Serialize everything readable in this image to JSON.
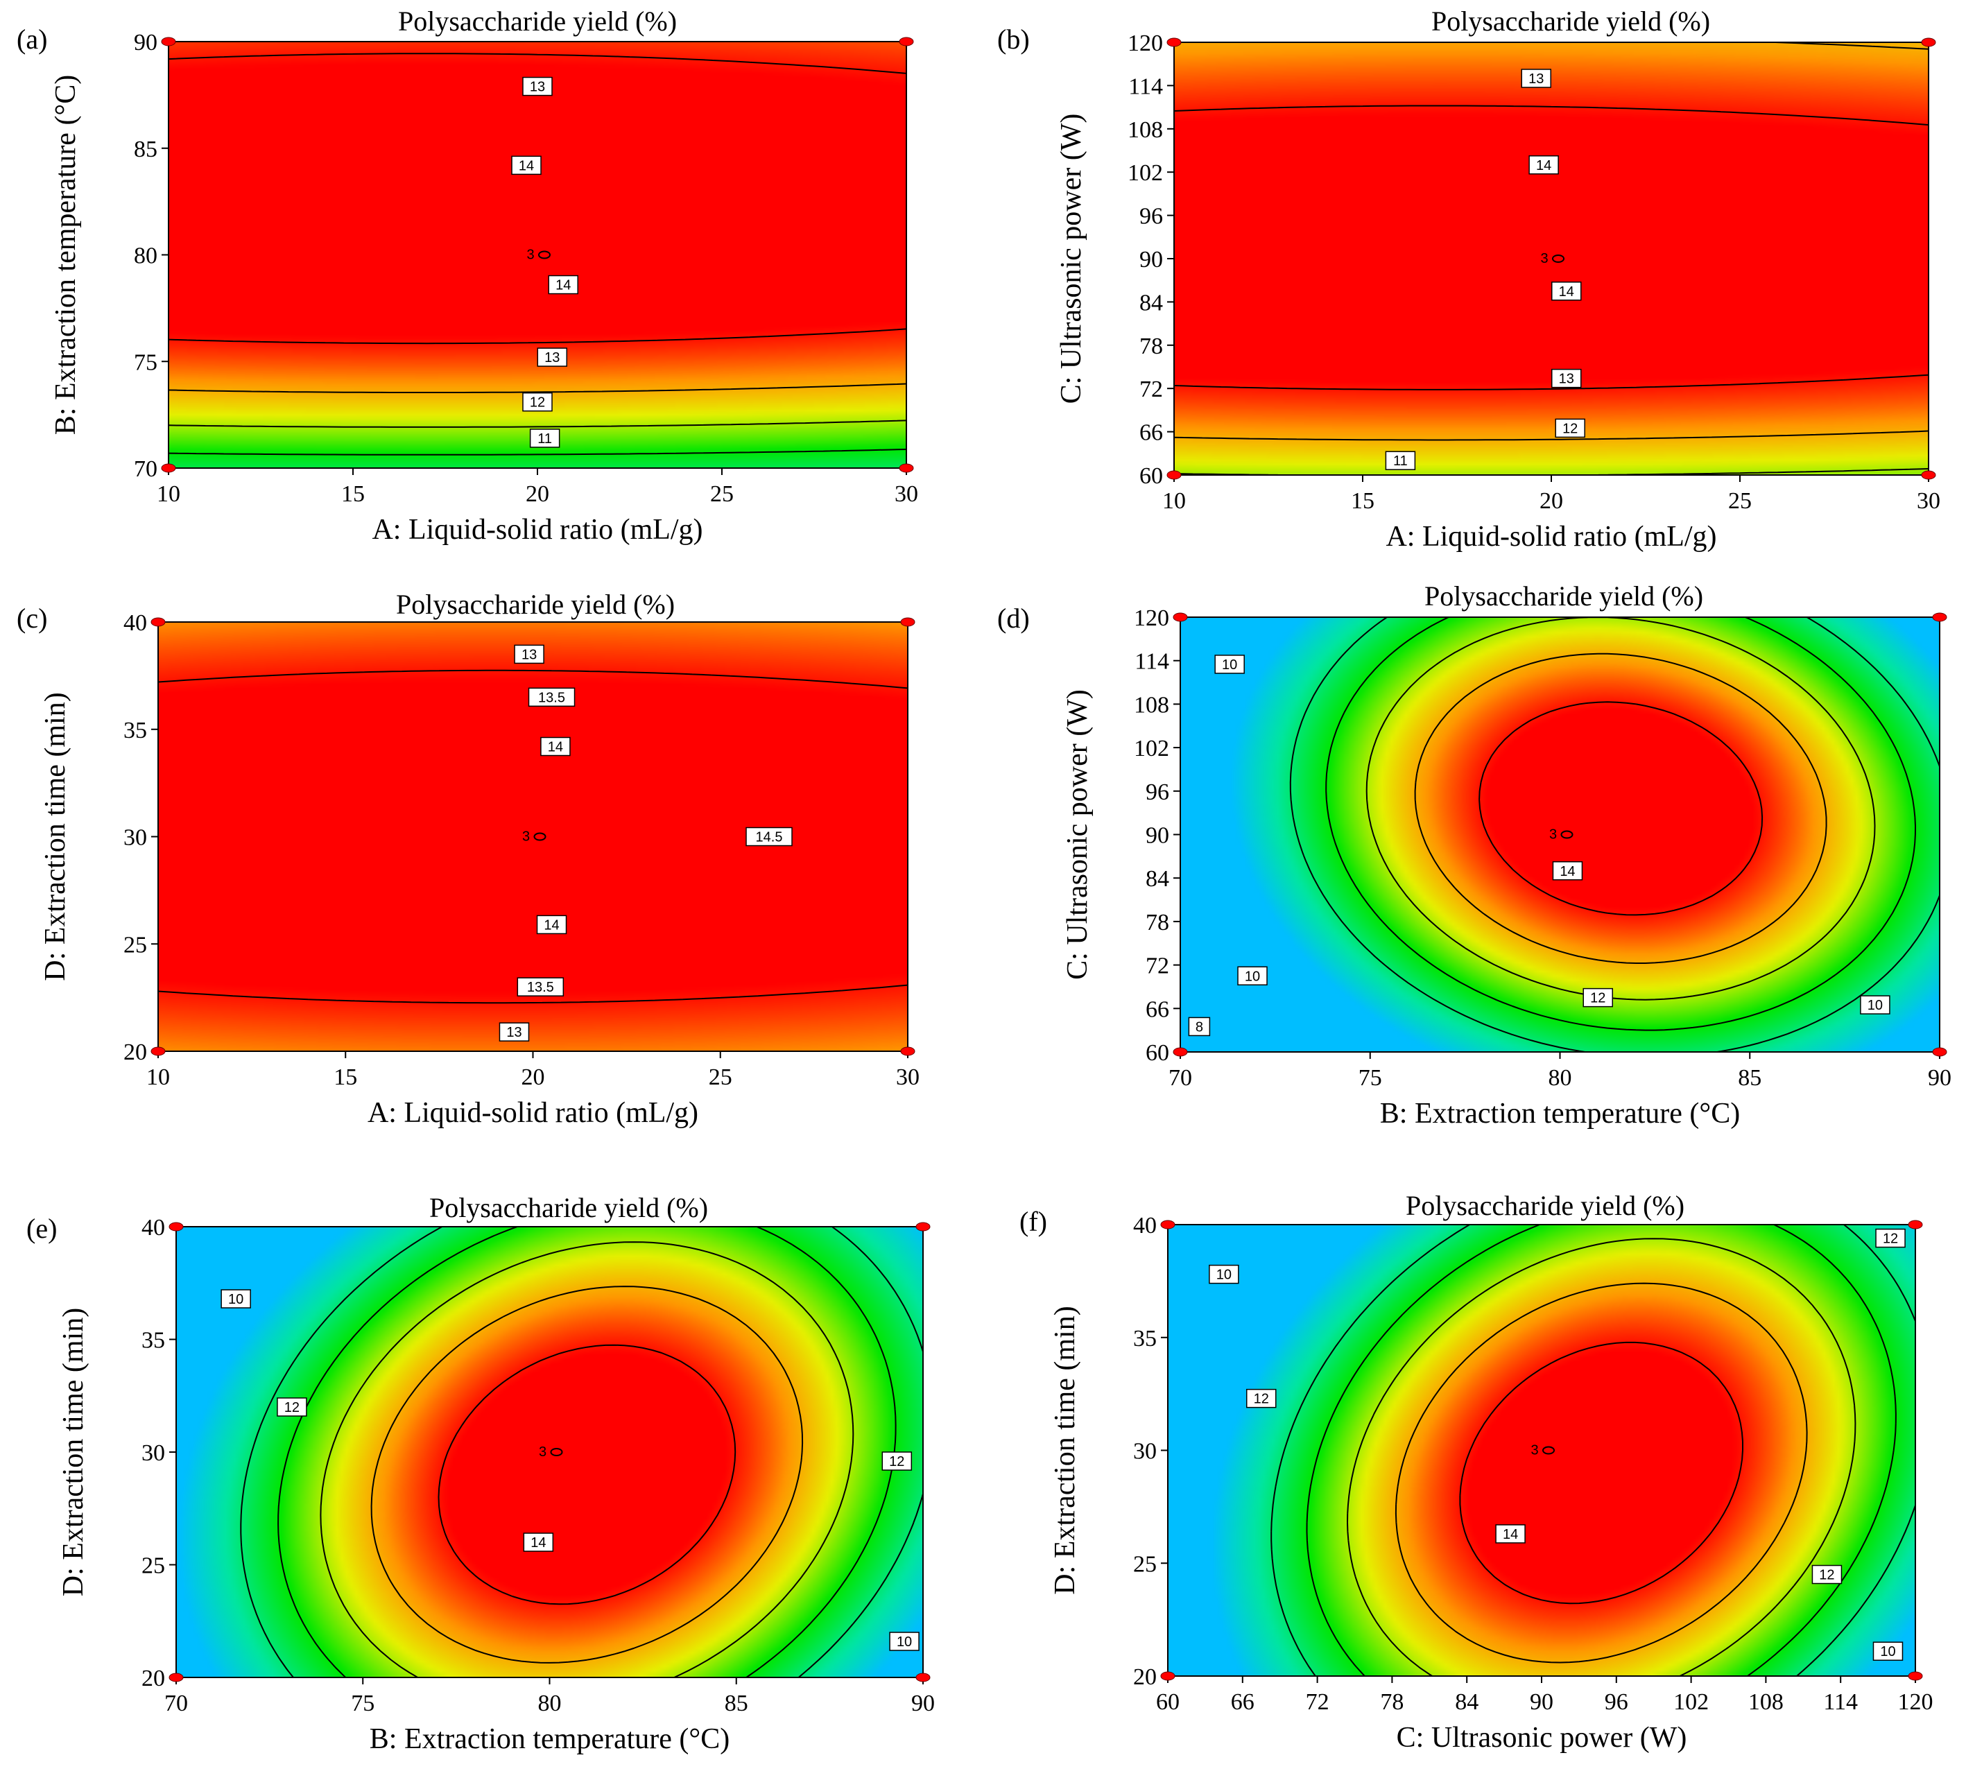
{
  "figure": {
    "colors": {
      "low": "#00c8ff",
      "mid": "#00ff00",
      "high": "#ff0000",
      "line": "#000000",
      "design_point": "#ff0000"
    }
  },
  "chart_data": [
    {
      "id": "a",
      "type": "heatmap",
      "panel_label": "(a)",
      "title": "Polysaccharide yield (%)",
      "xlabel": "A: Liquid-solid ratio (mL/g)",
      "ylabel": "B: Extraction temperature (°C)",
      "xlim": [
        10,
        30
      ],
      "ylim": [
        70,
        90
      ],
      "xticks": [
        10,
        15,
        20,
        25,
        30
      ],
      "yticks": [
        70,
        75,
        80,
        85,
        90
      ],
      "center_point": {
        "x": 20,
        "y": 80,
        "label": "3"
      },
      "contour_labels": [
        {
          "text": "13",
          "x": 20,
          "y": 87.9
        },
        {
          "text": "14",
          "x": 19.7,
          "y": 84.2
        },
        {
          "text": "14",
          "x": 20.7,
          "y": 78.6
        },
        {
          "text": "13",
          "x": 20.4,
          "y": 75.2
        },
        {
          "text": "12",
          "x": 20,
          "y": 73.1
        },
        {
          "text": "11",
          "x": 20.2,
          "y": 71.4
        }
      ]
    },
    {
      "id": "b",
      "type": "heatmap",
      "panel_label": "(b)",
      "title": "Polysaccharide yield (%)",
      "xlabel": "A: Liquid-solid ratio (mL/g)",
      "ylabel": "C: Ultrasonic power (W)",
      "xlim": [
        10,
        30
      ],
      "ylim": [
        60,
        120
      ],
      "xticks": [
        10,
        15,
        20,
        25,
        30
      ],
      "yticks": [
        60,
        66,
        72,
        78,
        84,
        90,
        96,
        102,
        108,
        114,
        120
      ],
      "center_point": {
        "x": 20,
        "y": 90,
        "label": "3"
      },
      "contour_labels": [
        {
          "text": "13",
          "x": 19.6,
          "y": 115
        },
        {
          "text": "14",
          "x": 19.8,
          "y": 103
        },
        {
          "text": "14",
          "x": 20.4,
          "y": 85.5
        },
        {
          "text": "13",
          "x": 20.4,
          "y": 73.4
        },
        {
          "text": "12",
          "x": 20.5,
          "y": 66.5
        },
        {
          "text": "11",
          "x": 16,
          "y": 62
        }
      ]
    },
    {
      "id": "c",
      "type": "heatmap",
      "panel_label": "(c)",
      "title": "Polysaccharide yield (%)",
      "xlabel": "A: Liquid-solid ratio (mL/g)",
      "ylabel": "D: Extraction time (min)",
      "xlim": [
        10,
        30
      ],
      "ylim": [
        20,
        40
      ],
      "xticks": [
        10,
        15,
        20,
        25,
        30
      ],
      "yticks": [
        20,
        25,
        30,
        35,
        40
      ],
      "center_point": {
        "x": 20,
        "y": 30,
        "label": "3"
      },
      "contour_labels": [
        {
          "text": "13",
          "x": 19.9,
          "y": 38.5
        },
        {
          "text": "13.5",
          "x": 20.5,
          "y": 36.5
        },
        {
          "text": "14",
          "x": 20.6,
          "y": 34.2
        },
        {
          "text": "14.5",
          "x": 26.3,
          "y": 30
        },
        {
          "text": "14",
          "x": 20.5,
          "y": 25.9
        },
        {
          "text": "13.5",
          "x": 20.2,
          "y": 23
        },
        {
          "text": "13",
          "x": 19.5,
          "y": 20.9
        }
      ]
    },
    {
      "id": "d",
      "type": "heatmap",
      "panel_label": "(d)",
      "title": "Polysaccharide yield (%)",
      "xlabel": "B: Extraction temperature (°C)",
      "ylabel": "C: Ultrasonic power (W)",
      "xlim": [
        70,
        90
      ],
      "ylim": [
        60,
        120
      ],
      "xticks": [
        70,
        75,
        80,
        85,
        90
      ],
      "yticks": [
        60,
        66,
        72,
        78,
        84,
        90,
        96,
        102,
        108,
        114,
        120
      ],
      "center_point": {
        "x": 80,
        "y": 90,
        "label": "3"
      },
      "contour_labels": [
        {
          "text": "10",
          "x": 71.3,
          "y": 113.5
        },
        {
          "text": "14",
          "x": 80.2,
          "y": 85
        },
        {
          "text": "10",
          "x": 71.9,
          "y": 70.5
        },
        {
          "text": "12",
          "x": 81,
          "y": 67.5
        },
        {
          "text": "10",
          "x": 88.3,
          "y": 66.5
        },
        {
          "text": "8",
          "x": 70.5,
          "y": 63.5
        }
      ]
    },
    {
      "id": "e",
      "type": "heatmap",
      "panel_label": "(e)",
      "title": "Polysaccharide yield (%)",
      "xlabel": "B: Extraction temperature (°C)",
      "ylabel": "D: Extraction time (min)",
      "xlim": [
        70,
        90
      ],
      "ylim": [
        20,
        40
      ],
      "xticks": [
        70,
        75,
        80,
        85,
        90
      ],
      "yticks": [
        20,
        25,
        30,
        35,
        40
      ],
      "center_point": {
        "x": 80,
        "y": 30,
        "label": "3"
      },
      "contour_labels": [
        {
          "text": "10",
          "x": 71.6,
          "y": 36.8
        },
        {
          "text": "12",
          "x": 73.1,
          "y": 32
        },
        {
          "text": "14",
          "x": 79.7,
          "y": 26
        },
        {
          "text": "12",
          "x": 89.3,
          "y": 29.6
        },
        {
          "text": "10",
          "x": 89.5,
          "y": 21.6
        }
      ]
    },
    {
      "id": "f",
      "type": "heatmap",
      "panel_label": "(f)",
      "title": "Polysaccharide yield (%)",
      "xlabel": "C: Ultrasonic power (W)",
      "ylabel": "D: Extraction time (min)",
      "xlim": [
        60,
        120
      ],
      "ylim": [
        20,
        40
      ],
      "xticks": [
        60,
        66,
        72,
        78,
        84,
        90,
        96,
        102,
        108,
        114,
        120
      ],
      "yticks": [
        20,
        25,
        30,
        35,
        40
      ],
      "center_point": {
        "x": 90,
        "y": 30,
        "label": "3"
      },
      "contour_labels": [
        {
          "text": "12",
          "x": 118,
          "y": 39.4
        },
        {
          "text": "10",
          "x": 64.5,
          "y": 37.8
        },
        {
          "text": "12",
          "x": 67.5,
          "y": 32.3
        },
        {
          "text": "14",
          "x": 87.5,
          "y": 26.3
        },
        {
          "text": "12",
          "x": 112.9,
          "y": 24.5
        },
        {
          "text": "10",
          "x": 117.8,
          "y": 21.1
        }
      ]
    }
  ]
}
